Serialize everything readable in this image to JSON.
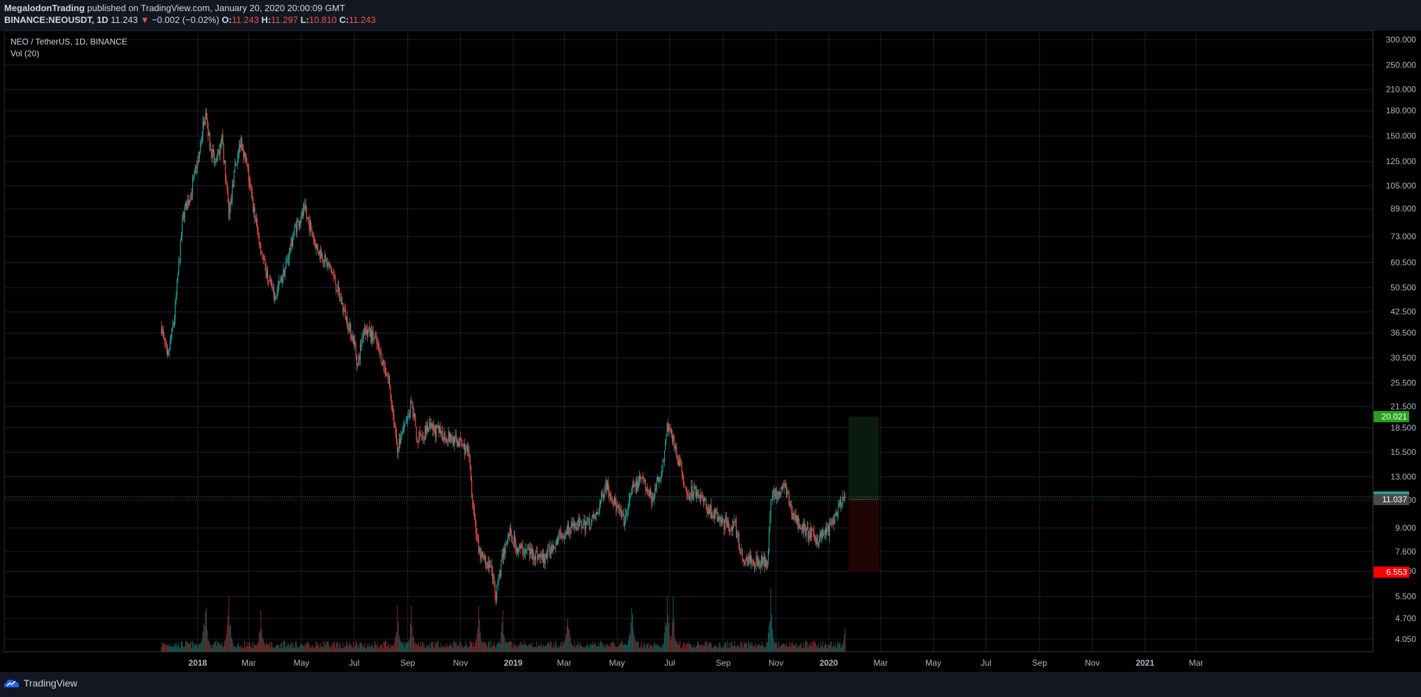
{
  "header": {
    "author": "MegalodonTrading",
    "published": " published on TradingView.com, January 20, 2020 20:00:09 GMT",
    "symbol": "BINANCE:NEOUSDT, 1D",
    "last": "11.243",
    "change": "−0.002 (−0.02%)",
    "o_label": "O:",
    "o": "11.243",
    "h_label": "H:",
    "h": "11.297",
    "l_label": "L:",
    "l": "10.810",
    "c_label": "C:",
    "c": "11.243"
  },
  "legend": {
    "title": "NEO / TetherUS, 1D, BINANCE",
    "vol": "Vol (20)"
  },
  "footer": {
    "brand": "TradingView"
  },
  "colors": {
    "up": "#26a69a",
    "down": "#ef5350",
    "grid": "#1c2030",
    "last_price_tag": "#26a69a",
    "target_tag": "#26a31a",
    "stop_tag": "#ff0000",
    "entry_tag": "#4a4a4a",
    "profit_zone": "#0b1a0e",
    "loss_zone": "#210404"
  },
  "chart_data": {
    "type": "candlestick",
    "scale": "log",
    "ylim": [
      3.7,
      320
    ],
    "y_ticks": [
      "300.000",
      "250.000",
      "210.000",
      "180.000",
      "150.000",
      "125.000",
      "105.000",
      "89.000",
      "73.000",
      "60.500",
      "50.500",
      "42.500",
      "36.500",
      "30.500",
      "25.500",
      "21.500",
      "18.500",
      "15.500",
      "13.000",
      "11.000",
      "9.000",
      "7.600",
      "6.600",
      "5.500",
      "4.700",
      "4.050"
    ],
    "x_ticks": [
      "2018",
      "Mar",
      "May",
      "Jul",
      "Sep",
      "Nov",
      "2019",
      "Mar",
      "May",
      "Jul",
      "Sep",
      "Nov",
      "2020",
      "Mar",
      "May",
      "Jul",
      "Sep",
      "Nov",
      "2021",
      "Mar"
    ],
    "x_range": [
      "2017-11-01",
      "2021-03-31"
    ],
    "price_path": [
      [
        "2017-11-20",
        38
      ],
      [
        "2017-11-27",
        30
      ],
      [
        "2017-12-05",
        41
      ],
      [
        "2017-12-15",
        85
      ],
      [
        "2017-12-24",
        100
      ],
      [
        "2018-01-02",
        128
      ],
      [
        "2018-01-10",
        186
      ],
      [
        "2018-01-15",
        140
      ],
      [
        "2018-01-22",
        120
      ],
      [
        "2018-01-29",
        150
      ],
      [
        "2018-02-06",
        85
      ],
      [
        "2018-02-13",
        118
      ],
      [
        "2018-02-20",
        148
      ],
      [
        "2018-02-28",
        115
      ],
      [
        "2018-03-10",
        78
      ],
      [
        "2018-03-20",
        58
      ],
      [
        "2018-03-31",
        47
      ],
      [
        "2018-04-12",
        58
      ],
      [
        "2018-04-24",
        78
      ],
      [
        "2018-05-05",
        88
      ],
      [
        "2018-05-18",
        68
      ],
      [
        "2018-06-05",
        57
      ],
      [
        "2018-06-20",
        42
      ],
      [
        "2018-07-01",
        34
      ],
      [
        "2018-07-05",
        29
      ],
      [
        "2018-07-12",
        38
      ],
      [
        "2018-07-25",
        35
      ],
      [
        "2018-08-10",
        26
      ],
      [
        "2018-08-20",
        16
      ],
      [
        "2018-08-28",
        18.5
      ],
      [
        "2018-09-05",
        22
      ],
      [
        "2018-09-12",
        17
      ],
      [
        "2018-09-25",
        18.5
      ],
      [
        "2018-10-15",
        17.5
      ],
      [
        "2018-11-01",
        16.5
      ],
      [
        "2018-11-10",
        15.5
      ],
      [
        "2018-11-15",
        11
      ],
      [
        "2018-11-22",
        7.5
      ],
      [
        "2018-12-05",
        6.8
      ],
      [
        "2018-12-12",
        5.6
      ],
      [
        "2018-12-20",
        7.4
      ],
      [
        "2018-12-28",
        8.8
      ],
      [
        "2019-01-05",
        7.8
      ],
      [
        "2019-01-20",
        7.6
      ],
      [
        "2019-02-05",
        7.2
      ],
      [
        "2019-02-20",
        8.3
      ],
      [
        "2019-03-05",
        9.0
      ],
      [
        "2019-03-20",
        9.2
      ],
      [
        "2019-04-01",
        9.4
      ],
      [
        "2019-04-08",
        9.9
      ],
      [
        "2019-04-18",
        12.5
      ],
      [
        "2019-04-28",
        10.8
      ],
      [
        "2019-05-10",
        9.3
      ],
      [
        "2019-05-18",
        11.8
      ],
      [
        "2019-05-30",
        12.8
      ],
      [
        "2019-06-10",
        11.2
      ],
      [
        "2019-06-22",
        13.5
      ],
      [
        "2019-06-28",
        19.0
      ],
      [
        "2019-07-05",
        17.0
      ],
      [
        "2019-07-12",
        14.2
      ],
      [
        "2019-07-20",
        11.5
      ],
      [
        "2019-08-01",
        11.8
      ],
      [
        "2019-08-15",
        10.3
      ],
      [
        "2019-09-01",
        9.3
      ],
      [
        "2019-09-15",
        9.1
      ],
      [
        "2019-09-23",
        7.2
      ],
      [
        "2019-10-10",
        7.1
      ],
      [
        "2019-10-22",
        7.0
      ],
      [
        "2019-10-26",
        11.5
      ],
      [
        "2019-11-05",
        11.2
      ],
      [
        "2019-11-10",
        12.3
      ],
      [
        "2019-11-20",
        10.0
      ],
      [
        "2019-12-01",
        9.0
      ],
      [
        "2019-12-18",
        8.3
      ],
      [
        "2020-01-01",
        8.9
      ],
      [
        "2020-01-12",
        10.3
      ],
      [
        "2020-01-20",
        11.243
      ]
    ],
    "volume_spikes": [
      [
        "2018-01-10",
        1.0
      ],
      [
        "2018-02-06",
        1.0
      ],
      [
        "2018-03-15",
        0.75
      ],
      [
        "2018-08-20",
        0.7
      ],
      [
        "2018-09-05",
        0.75
      ],
      [
        "2018-11-22",
        0.8
      ],
      [
        "2018-12-20",
        0.7
      ],
      [
        "2019-03-05",
        0.9
      ],
      [
        "2019-05-18",
        0.9
      ],
      [
        "2019-06-28",
        1.0
      ],
      [
        "2019-07-05",
        0.85
      ],
      [
        "2019-10-26",
        1.0
      ],
      [
        "2020-01-20",
        0.5
      ]
    ],
    "last_price": "11.243",
    "position": {
      "target": "20.021",
      "entry": "11.037",
      "stop": "6.553",
      "start": "2020-01-24",
      "end": "2020-02-28"
    }
  }
}
